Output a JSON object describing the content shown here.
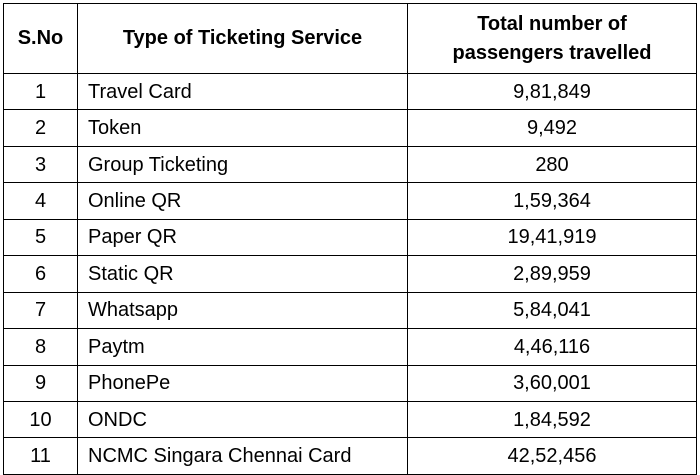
{
  "table": {
    "headers": {
      "sno": "S.No",
      "service": "Type of Ticketing Service",
      "passengers_line1": "Total number of",
      "passengers_line2": "passengers travelled"
    },
    "rows": [
      {
        "sno": "1",
        "service": "Travel Card",
        "passengers": "9,81,849"
      },
      {
        "sno": "2",
        "service": "Token",
        "passengers": "9,492"
      },
      {
        "sno": "3",
        "service": "Group Ticketing",
        "passengers": "280"
      },
      {
        "sno": "4",
        "service": "Online QR",
        "passengers": "1,59,364"
      },
      {
        "sno": "5",
        "service": "Paper QR",
        "passengers": "19,41,919"
      },
      {
        "sno": "6",
        "service": "Static QR",
        "passengers": "2,89,959"
      },
      {
        "sno": "7",
        "service": "Whatsapp",
        "passengers": "5,84,041"
      },
      {
        "sno": "8",
        "service": "Paytm",
        "passengers": "4,46,116"
      },
      {
        "sno": "9",
        "service": "PhonePe",
        "passengers": "3,60,001"
      },
      {
        "sno": "10",
        "service": "ONDC",
        "passengers": "1,84,592"
      },
      {
        "sno": "11",
        "service": "NCMC Singara Chennai Card",
        "passengers": "42,52,456"
      }
    ]
  }
}
